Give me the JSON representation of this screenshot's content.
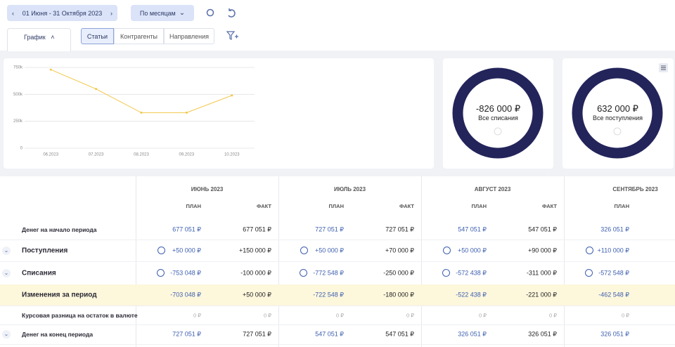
{
  "toolbar": {
    "date_range": "01 Июня - 31 Октября 2023",
    "grouping": "По месяцам"
  },
  "tabs": {
    "active": "График",
    "filters": [
      "Статьи",
      "Контрагенты",
      "Направления"
    ]
  },
  "chart_data": {
    "type": "line",
    "categories": [
      "06.2023",
      "07.2023",
      "08.2023",
      "09.2023",
      "10.2023"
    ],
    "series": [
      {
        "color": "#f2c84b",
        "values": [
          730000,
          550000,
          330000,
          330000,
          490000
        ]
      }
    ],
    "ylim": [
      0,
      750000
    ],
    "yticks": [
      0,
      {
        "value": 250000,
        "label": "250k"
      },
      {
        "value": 500000,
        "label": "500k"
      },
      {
        "value": 750000,
        "label": "750k"
      }
    ],
    "grid": true
  },
  "summary": [
    {
      "value": "-826 000 ₽",
      "label": "Все списания"
    },
    {
      "value": "632 000 ₽",
      "label": "Все поступления"
    }
  ],
  "table": {
    "months": [
      "ИЮНЬ 2023",
      "ИЮЛЬ 2023",
      "АВГУСТ 2023",
      "СЕНТЯБРЬ 2023"
    ],
    "plan_label": "ПЛАН",
    "fact_label": "ФАКТ",
    "rows": [
      {
        "label": "Денег на начало периода",
        "cells": [
          "677 051 ₽",
          "677 051 ₽",
          "727 051 ₽",
          "727 051 ₽",
          "547 051 ₽",
          "547 051 ₽",
          "326 051 ₽"
        ]
      },
      {
        "label": "Поступления",
        "cells": [
          "+50 000 ₽",
          "+150 000 ₽",
          "+50 000 ₽",
          "+70 000 ₽",
          "+50 000 ₽",
          "+90 000 ₽",
          "+110 000 ₽"
        ]
      },
      {
        "label": "Списания",
        "cells": [
          "-753 048 ₽",
          "-100 000 ₽",
          "-772 548 ₽",
          "-250 000 ₽",
          "-572 438 ₽",
          "-311 000 ₽",
          "-572 548 ₽"
        ]
      },
      {
        "label": "Изменения за период",
        "cells": [
          "-703 048 ₽",
          "+50 000 ₽",
          "-722 548 ₽",
          "-180 000 ₽",
          "-522 438 ₽",
          "-221 000 ₽",
          "-462 548 ₽"
        ]
      },
      {
        "label": "Курсовая разница на остаток в валюте",
        "cells": [
          "0 ₽",
          "0 ₽",
          "0 ₽",
          "0 ₽",
          "0 ₽",
          "0 ₽",
          "0 ₽"
        ]
      },
      {
        "label": "Денег на конец периода",
        "cells": [
          "727 051 ₽",
          "727 051 ₽",
          "547 051 ₽",
          "547 051 ₽",
          "326 051 ₽",
          "326 051 ₽",
          "326 051 ₽"
        ]
      }
    ]
  }
}
